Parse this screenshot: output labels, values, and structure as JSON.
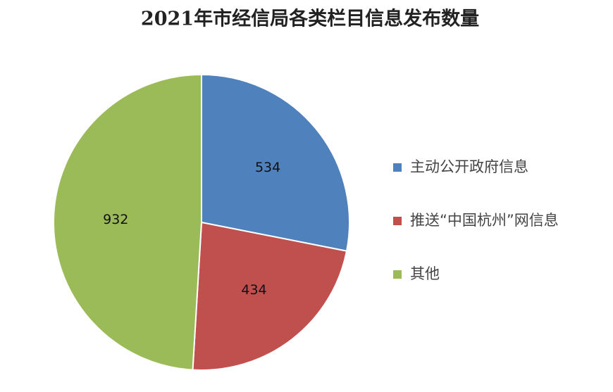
{
  "chart_data": {
    "type": "pie",
    "title": "2021年市经信局各类栏目信息发布数量",
    "categories": [
      "主动公开政府信息",
      "推送“中国杭州”网信息",
      "其他"
    ],
    "values": [
      534,
      434,
      932
    ],
    "colors": [
      "#4f81bd",
      "#c0504d",
      "#9bbb59"
    ],
    "legend": "right"
  }
}
